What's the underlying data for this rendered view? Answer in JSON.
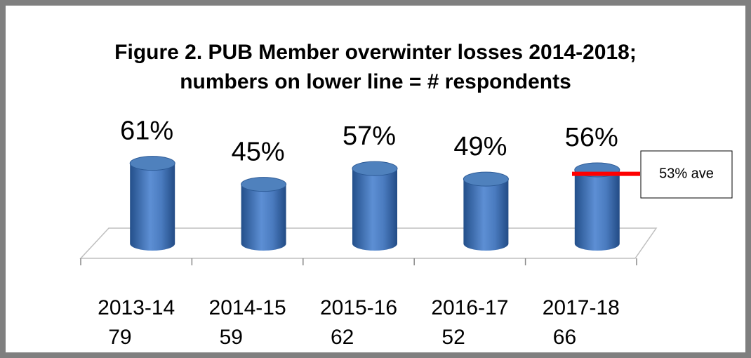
{
  "chart_data": {
    "type": "cylinder",
    "title": "Figure 2. PUB Member overwinter losses 2014-2018;",
    "subtitle": "numbers on lower line = # respondents",
    "categories": [
      "2013-14",
      "2014-15",
      "2015-16",
      "2016-17",
      "2017-18"
    ],
    "respondents": [
      79,
      59,
      62,
      52,
      66
    ],
    "values": [
      61,
      45,
      57,
      49,
      56
    ],
    "value_labels": [
      "61%",
      "45%",
      "57%",
      "49%",
      "56%"
    ],
    "color": "#4f81bd",
    "average": 53,
    "average_label": "53% ave",
    "average_color": "#ff0000"
  }
}
